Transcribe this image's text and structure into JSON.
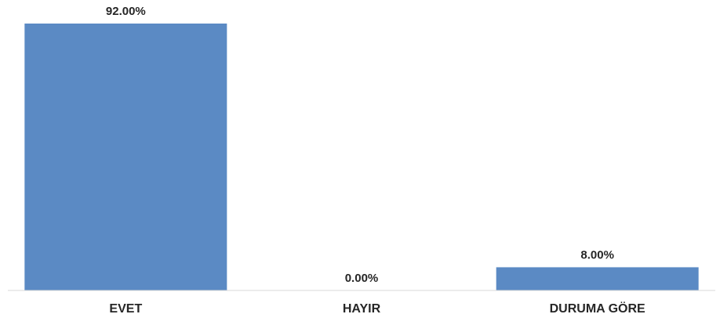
{
  "chart_data": {
    "type": "bar",
    "categories": [
      "EVET",
      "HAYIR",
      "DURUMA GÖRE"
    ],
    "values": [
      92.0,
      0.0,
      8.0
    ],
    "data_labels": [
      "92.00%",
      "0.00%",
      "8.00%"
    ],
    "unit": "%",
    "title": "",
    "xlabel": "",
    "ylabel": "",
    "ylim": [
      0,
      100
    ],
    "grid": false,
    "legend": "none",
    "bar_color": "#5b8ac4",
    "axis_color": "#d9d9d9"
  }
}
